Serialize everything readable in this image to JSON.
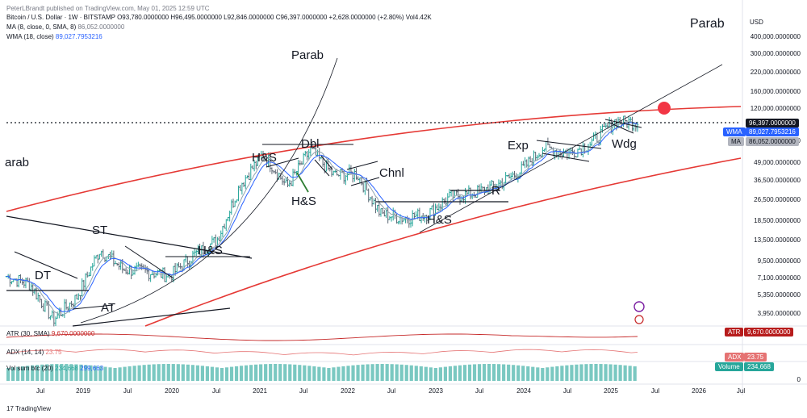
{
  "header": {
    "published": "PeterLBrandt published on TradingView.com, May 01, 2025 12:59 UTC",
    "symbol_line": "Bitcoin / U.S. Dollar · 1W · BITSTAMP  O93,780.0000000  H96,495.0000000  L92,846.0000000  C96,397.0000000  +2,628.0000000 (+2.80%)  Vol4.42K",
    "ma_label": "MA (8, close, 0, SMA, 8)",
    "ma_value": "86,052.0000000",
    "wma_label": "WMA (18, close)",
    "wma_value": "89,027.7953216"
  },
  "axis": {
    "currency": "USD",
    "price_ticks": [
      "400,000.0000000",
      "300,000.0000000",
      "220,000.0000000",
      "160,000.0000000",
      "120,000.0000000",
      "70,000.0000000",
      "49,000.0000000",
      "36,500.0000000",
      "26,500.0000000",
      "18,500.0000000",
      "13,500.0000000",
      "9,500.0000000",
      "7,100.0000000",
      "5,350.0000000",
      "3,950.0000000"
    ],
    "time_ticks": [
      "Jul",
      "2019",
      "Jul",
      "2020",
      "Jul",
      "2021",
      "Jul",
      "2022",
      "Jul",
      "2023",
      "Jul",
      "2024",
      "Jul",
      "2025",
      "Jul",
      "2026",
      "Jul"
    ],
    "volume_zero": "0"
  },
  "price_tags": {
    "last": "96,397.0000000",
    "wma_tag": "WMA",
    "wma": "89,027.7953216",
    "ma_tag": "MA",
    "ma": "86,052.0000000",
    "atr_tag": "ATR",
    "atr": "9,670.0000000",
    "adx_tag": "ADX",
    "adx": "23.75",
    "volume_tag": "Volume",
    "volume": "234,668"
  },
  "indicators": {
    "atr_label": "ATR (30, SMA)",
    "atr_value": "9,670.0000000",
    "adx_label": "ADX (14, 14)",
    "adx_value": "23.75",
    "vol_label": "Vol sum btc (20)",
    "vol_value1": "234,668",
    "vol_value2": "299,663"
  },
  "annotations": {
    "parab_top": "Parab",
    "parab_mid": "Parab",
    "parab_left": "arab",
    "dt": "DT",
    "at": "AT",
    "st": "ST",
    "hs1": "H&S",
    "hs2": "H&S",
    "hs3": "H&S",
    "hs4": "H&S",
    "dbl": "Dbl",
    "chnl": "Chnl",
    "r": "R",
    "exp": "Exp",
    "wdg": "Wdg"
  },
  "colors": {
    "up": "#26a69a",
    "down": "#131722",
    "bar": "#5a6572",
    "ma_line": "#90a4ae",
    "wma_line": "#2962ff",
    "red_curve": "#e53935",
    "atr_line": "#c62828",
    "adx_line": "#e57373",
    "volume": "#4db6ac",
    "target_dot": "#f23645"
  },
  "chart_data": {
    "type": "ohlc",
    "title": "Bitcoin / U.S. Dollar · 1W · BITSTAMP",
    "scale": "log",
    "x": [
      "2018-07",
      "2018-10",
      "2019-01",
      "2019-04",
      "2019-07",
      "2019-10",
      "2020-01",
      "2020-04",
      "2020-07",
      "2020-10",
      "2021-01",
      "2021-04",
      "2021-07",
      "2021-10",
      "2022-01",
      "2022-04",
      "2022-07",
      "2022-10",
      "2023-01",
      "2023-04",
      "2023-07",
      "2023-10",
      "2024-01",
      "2024-04",
      "2024-07",
      "2024-10",
      "2025-01",
      "2025-04"
    ],
    "series": [
      {
        "values": [
          7400,
          6500,
          3600,
          5200,
          11500,
          8300,
          8000,
          7500,
          10500,
          13500,
          34000,
          58000,
          33000,
          61000,
          40000,
          41000,
          21000,
          19500,
          21000,
          28000,
          29500,
          34000,
          43000,
          64000,
          57000,
          68000,
          98000,
          96397
        ]
      }
    ],
    "ylim": [
      3500,
      400000
    ]
  }
}
